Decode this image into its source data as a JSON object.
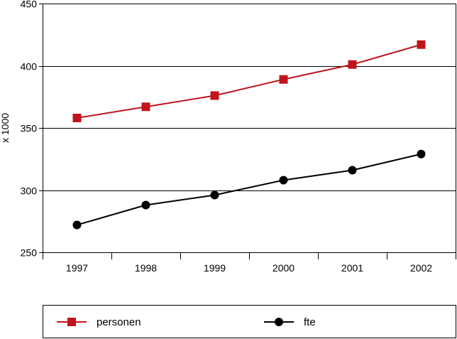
{
  "chart_data": {
    "type": "line",
    "title": "",
    "xlabel": "",
    "ylabel": "x 1000",
    "categories": [
      "1997",
      "1998",
      "1999",
      "2000",
      "2001",
      "2002"
    ],
    "ylim": [
      250,
      450
    ],
    "yticks": [
      250,
      300,
      350,
      400,
      450
    ],
    "grid": true,
    "legend_position": "bottom",
    "series": [
      {
        "name": "personen",
        "color": "#c0141c",
        "marker": "square",
        "values": [
          358,
          367,
          376,
          389,
          401,
          417
        ]
      },
      {
        "name": "fte",
        "color": "#000000",
        "marker": "circle",
        "values": [
          272,
          288,
          296,
          308,
          316,
          329
        ]
      }
    ]
  }
}
